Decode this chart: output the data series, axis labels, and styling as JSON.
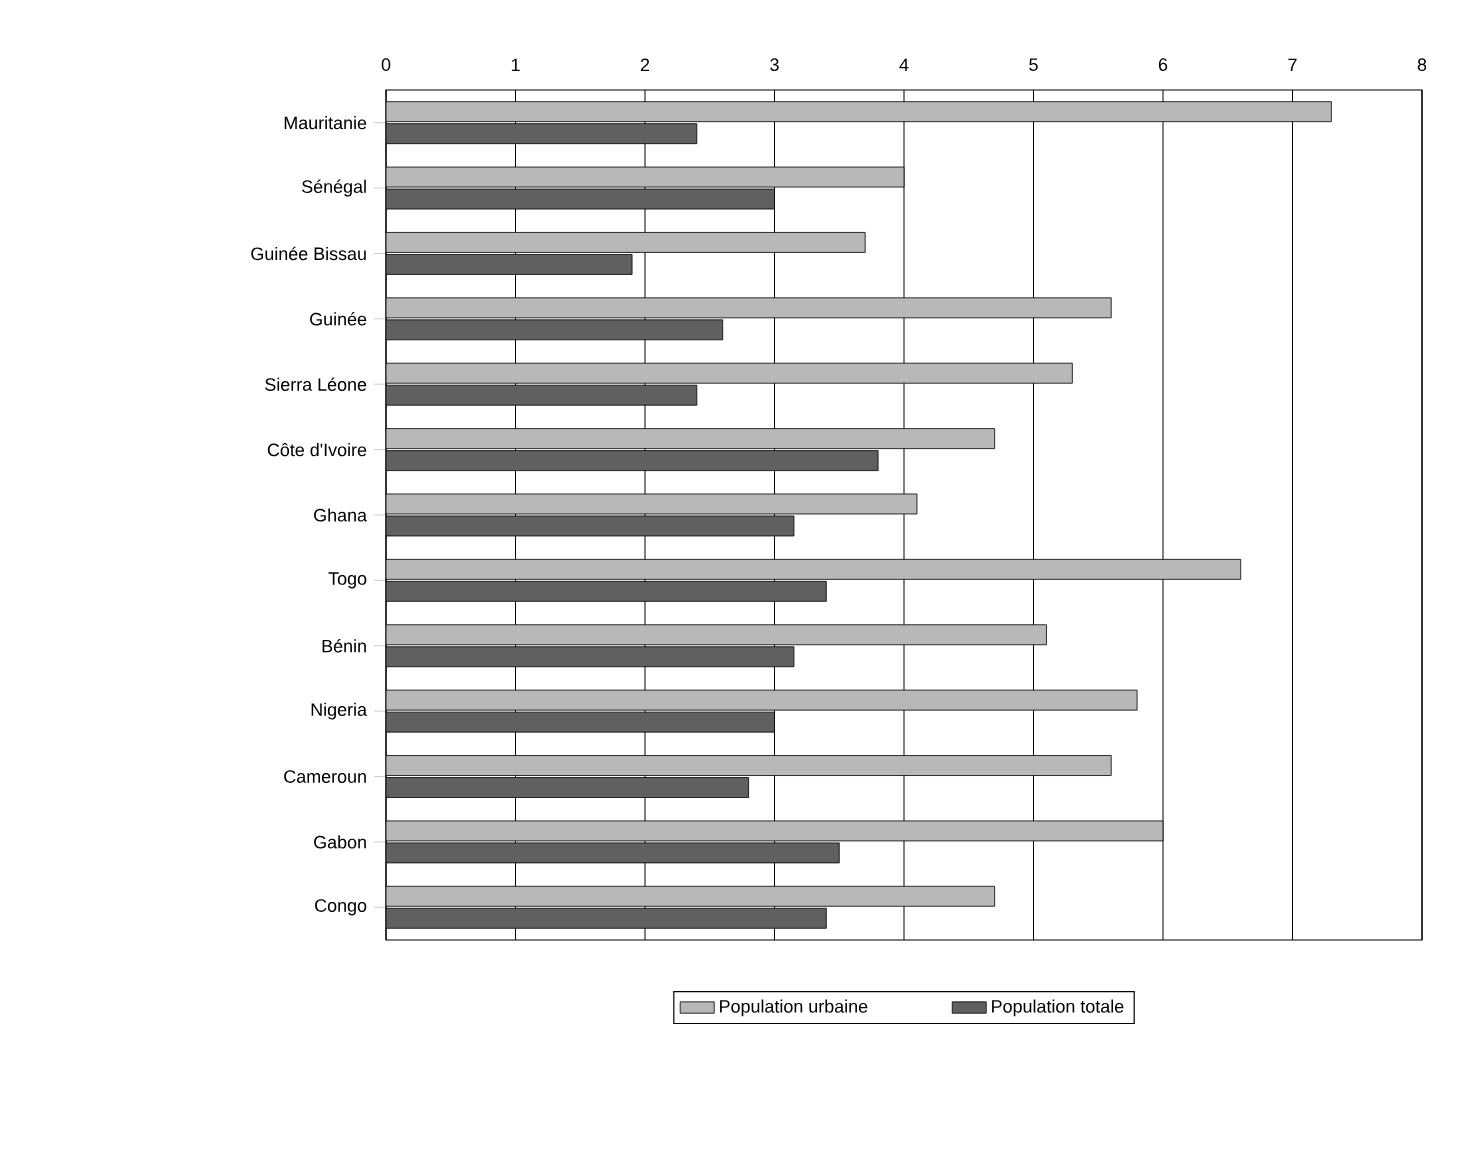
{
  "chart_data": {
    "type": "bar",
    "orientation": "horizontal",
    "categories": [
      "Mauritanie",
      "Sénégal",
      "Guinée Bissau",
      "Guinée",
      "Sierra Léone",
      "Côte d'Ivoire",
      "Ghana",
      "Togo",
      "Bénin",
      "Nigeria",
      "Cameroun",
      "Gabon",
      "Congo"
    ],
    "series": [
      {
        "name": "Population urbaine",
        "color": "#b8b8b8",
        "values": [
          7.3,
          4.0,
          3.7,
          5.6,
          5.3,
          4.7,
          4.1,
          6.6,
          5.1,
          5.8,
          5.6,
          6.0,
          4.7
        ]
      },
      {
        "name": "Population totale",
        "color": "#606060",
        "values": [
          2.4,
          3.0,
          1.9,
          2.6,
          2.4,
          3.8,
          3.15,
          3.4,
          3.15,
          3.0,
          2.8,
          3.5,
          3.4
        ]
      }
    ],
    "xlim": [
      0,
      8
    ],
    "xticks": [
      0,
      1,
      2,
      3,
      4,
      5,
      6,
      7,
      8
    ],
    "grid": "x",
    "legend": "bottom"
  }
}
